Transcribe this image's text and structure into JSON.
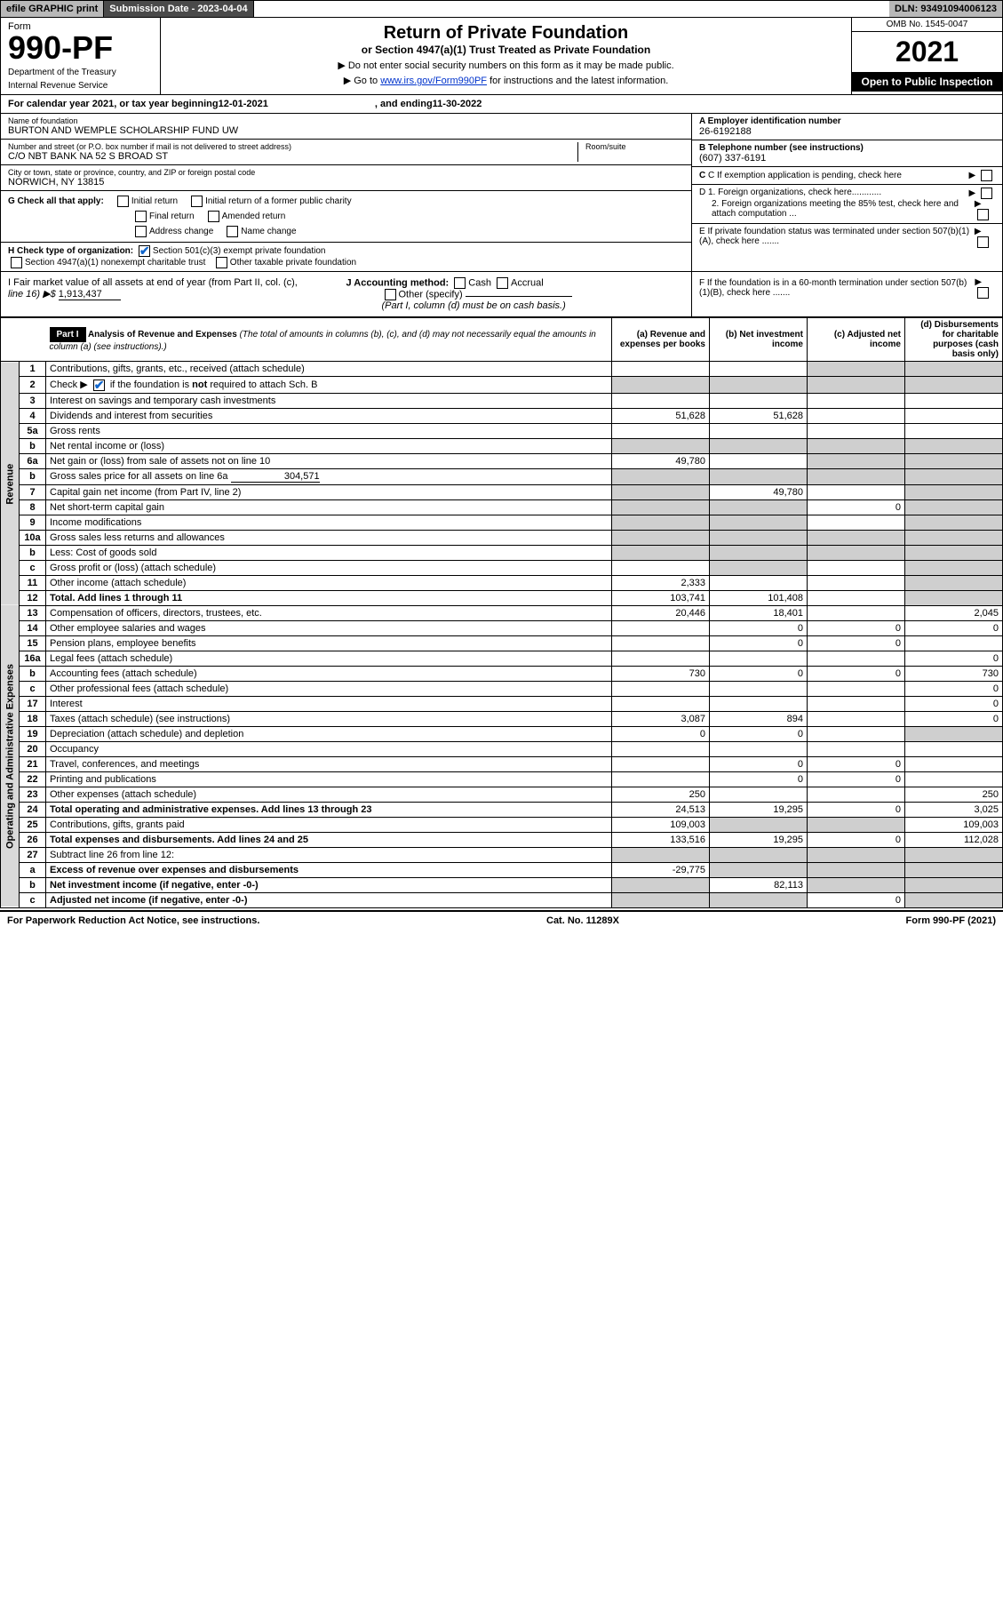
{
  "topbar": {
    "efile": "efile GRAPHIC print",
    "submission": "Submission Date - 2023-04-04",
    "dln": "DLN: 93491094006123"
  },
  "header": {
    "form_label": "Form",
    "form_num": "990-PF",
    "dept": "Department of the Treasury",
    "irs": "Internal Revenue Service",
    "title": "Return of Private Foundation",
    "subtitle": "or Section 4947(a)(1) Trust Treated as Private Foundation",
    "note1": "▶ Do not enter social security numbers on this form as it may be made public.",
    "note2_pre": "▶ Go to ",
    "note2_link": "www.irs.gov/Form990PF",
    "note2_post": " for instructions and the latest information.",
    "omb": "OMB No. 1545-0047",
    "year": "2021",
    "open": "Open to Public Inspection"
  },
  "cal": {
    "prefix": "For calendar year 2021, or tax year beginning ",
    "begin": "12-01-2021",
    "mid": " , and ending ",
    "end": "11-30-2022"
  },
  "info": {
    "name_lbl": "Name of foundation",
    "name": "BURTON AND WEMPLE SCHOLARSHIP FUND UW",
    "addr_lbl": "Number and street (or P.O. box number if mail is not delivered to street address)",
    "addr": "C/O NBT BANK NA 52 S BROAD ST",
    "room_lbl": "Room/suite",
    "city_lbl": "City or town, state or province, country, and ZIP or foreign postal code",
    "city": "NORWICH, NY  13815",
    "a_lbl": "A Employer identification number",
    "a_val": "26-6192188",
    "b_lbl": "B Telephone number (see instructions)",
    "b_val": "(607) 337-6191",
    "c_lbl": "C If exemption application is pending, check here",
    "d1": "D 1. Foreign organizations, check here............",
    "d2": "2. Foreign organizations meeting the 85% test, check here and attach computation ...",
    "e": "E If private foundation status was terminated under section 507(b)(1)(A), check here .......",
    "f": "F If the foundation is in a 60-month termination under section 507(b)(1)(B), check here .......",
    "g_lbl": "G Check all that apply:",
    "g_opts": [
      "Initial return",
      "Initial return of a former public charity",
      "Final return",
      "Amended return",
      "Address change",
      "Name change"
    ],
    "h_lbl": "H Check type of organization:",
    "h_opt1": "Section 501(c)(3) exempt private foundation",
    "h_opt2": "Section 4947(a)(1) nonexempt charitable trust",
    "h_opt3": "Other taxable private foundation",
    "i_lbl": "I Fair market value of all assets at end of year (from Part II, col. (c),",
    "i_line": "line 16) ▶$ ",
    "i_val": "1,913,437",
    "j_lbl": "J Accounting method:",
    "j_cash": "Cash",
    "j_accrual": "Accrual",
    "j_other": "Other (specify)",
    "j_note": "(Part I, column (d) must be on cash basis.)"
  },
  "part1": {
    "label": "Part I",
    "title": "Analysis of Revenue and Expenses",
    "title_note": " (The total of amounts in columns (b), (c), and (d) may not necessarily equal the amounts in column (a) (see instructions).)",
    "col_a": "(a) Revenue and expenses per books",
    "col_b": "(b) Net investment income",
    "col_c": "(c) Adjusted net income",
    "col_d": "(d) Disbursements for charitable purposes (cash basis only)"
  },
  "sides": {
    "revenue": "Revenue",
    "expenses": "Operating and Administrative Expenses"
  },
  "rows": {
    "r1": {
      "n": "1",
      "d": "Contributions, gifts, grants, etc., received (attach schedule)"
    },
    "r2": {
      "n": "2",
      "d": "Check ▶      if the foundation is not required to attach Sch. B",
      "chk": true
    },
    "r3": {
      "n": "3",
      "d": "Interest on savings and temporary cash investments"
    },
    "r4": {
      "n": "4",
      "d": "Dividends and interest from securities",
      "a": "51,628",
      "b": "51,628"
    },
    "r5a": {
      "n": "5a",
      "d": "Gross rents"
    },
    "r5b": {
      "n": "b",
      "d": "Net rental income or (loss)"
    },
    "r6a": {
      "n": "6a",
      "d": "Net gain or (loss) from sale of assets not on line 10",
      "a": "49,780"
    },
    "r6b": {
      "n": "b",
      "d": "Gross sales price for all assets on line 6a",
      "inline": "304,571"
    },
    "r7": {
      "n": "7",
      "d": "Capital gain net income (from Part IV, line 2)",
      "b": "49,780"
    },
    "r8": {
      "n": "8",
      "d": "Net short-term capital gain",
      "c": "0"
    },
    "r9": {
      "n": "9",
      "d": "Income modifications"
    },
    "r10a": {
      "n": "10a",
      "d": "Gross sales less returns and allowances"
    },
    "r10b": {
      "n": "b",
      "d": "Less: Cost of goods sold"
    },
    "r10c": {
      "n": "c",
      "d": "Gross profit or (loss) (attach schedule)"
    },
    "r11": {
      "n": "11",
      "d": "Other income (attach schedule)",
      "a": "2,333"
    },
    "r12": {
      "n": "12",
      "d": "Total. Add lines 1 through 11",
      "a": "103,741",
      "b": "101,408",
      "bold": true
    },
    "r13": {
      "n": "13",
      "d": "Compensation of officers, directors, trustees, etc.",
      "a": "20,446",
      "b": "18,401",
      "dd": "2,045"
    },
    "r14": {
      "n": "14",
      "d": "Other employee salaries and wages",
      "b": "0",
      "c": "0",
      "dd": "0"
    },
    "r15": {
      "n": "15",
      "d": "Pension plans, employee benefits",
      "b": "0",
      "c": "0"
    },
    "r16a": {
      "n": "16a",
      "d": "Legal fees (attach schedule)",
      "dd": "0"
    },
    "r16b": {
      "n": "b",
      "d": "Accounting fees (attach schedule)",
      "a": "730",
      "b": "0",
      "c": "0",
      "dd": "730"
    },
    "r16c": {
      "n": "c",
      "d": "Other professional fees (attach schedule)",
      "dd": "0"
    },
    "r17": {
      "n": "17",
      "d": "Interest",
      "dd": "0"
    },
    "r18": {
      "n": "18",
      "d": "Taxes (attach schedule) (see instructions)",
      "a": "3,087",
      "b": "894",
      "dd": "0"
    },
    "r19": {
      "n": "19",
      "d": "Depreciation (attach schedule) and depletion",
      "a": "0",
      "b": "0"
    },
    "r20": {
      "n": "20",
      "d": "Occupancy"
    },
    "r21": {
      "n": "21",
      "d": "Travel, conferences, and meetings",
      "b": "0",
      "c": "0"
    },
    "r22": {
      "n": "22",
      "d": "Printing and publications",
      "b": "0",
      "c": "0"
    },
    "r23": {
      "n": "23",
      "d": "Other expenses (attach schedule)",
      "a": "250",
      "dd": "250"
    },
    "r24": {
      "n": "24",
      "d": "Total operating and administrative expenses. Add lines 13 through 23",
      "a": "24,513",
      "b": "19,295",
      "c": "0",
      "dd": "3,025",
      "bold": true
    },
    "r25": {
      "n": "25",
      "d": "Contributions, gifts, grants paid",
      "a": "109,003",
      "dd": "109,003"
    },
    "r26": {
      "n": "26",
      "d": "Total expenses and disbursements. Add lines 24 and 25",
      "a": "133,516",
      "b": "19,295",
      "c": "0",
      "dd": "112,028",
      "bold": true
    },
    "r27": {
      "n": "27",
      "d": "Subtract line 26 from line 12:"
    },
    "r27a": {
      "n": "a",
      "d": "Excess of revenue over expenses and disbursements",
      "a": "-29,775",
      "bold": true
    },
    "r27b": {
      "n": "b",
      "d": "Net investment income (if negative, enter -0-)",
      "b": "82,113",
      "bold": true
    },
    "r27c": {
      "n": "c",
      "d": "Adjusted net income (if negative, enter -0-)",
      "c": "0",
      "bold": true
    }
  },
  "footer": {
    "left": "For Paperwork Reduction Act Notice, see instructions.",
    "mid": "Cat. No. 11289X",
    "right": "Form 990-PF (2021)"
  },
  "shading": {
    "r1": [
      "c",
      "d"
    ],
    "r2": [
      "a",
      "b",
      "c",
      "d"
    ],
    "r5b": [
      "a",
      "b",
      "c",
      "d"
    ],
    "r6a": [
      "c",
      "d"
    ],
    "r6b": [
      "a",
      "b",
      "c",
      "d"
    ],
    "r7": [
      "a",
      "d"
    ],
    "r8": [
      "a",
      "b",
      "d"
    ],
    "r9": [
      "a",
      "b",
      "d"
    ],
    "r10a": [
      "a",
      "b",
      "c",
      "d"
    ],
    "r10b": [
      "a",
      "b",
      "c",
      "d"
    ],
    "r10c": [
      "b",
      "d"
    ],
    "r11": [
      "d"
    ],
    "r12": [
      "d"
    ],
    "r19": [
      "d"
    ],
    "r25": [
      "b",
      "c"
    ],
    "r27": [
      "a",
      "b",
      "c",
      "d"
    ],
    "r27a": [
      "b",
      "c",
      "d"
    ],
    "r27b": [
      "a",
      "c",
      "d"
    ],
    "r27c": [
      "a",
      "b",
      "d"
    ]
  },
  "colors": {
    "bg_shade": "#cfcfcf",
    "link": "#0033cc",
    "check": "#1166cc"
  }
}
